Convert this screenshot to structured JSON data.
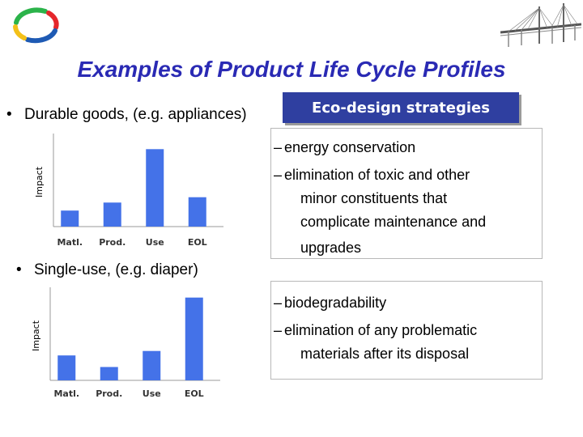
{
  "title": "Examples of Product Life Cycle Profiles",
  "bullets": {
    "durable": "Durable goods, (e.g. appliances)",
    "single_use": "Single-use, (e.g. diaper)",
    "marker": "•"
  },
  "strategy_box": {
    "label": "Eco-design strategies"
  },
  "durable_strategies": {
    "items": [
      [
        "energy conservation"
      ],
      [
        "elimination of toxic and other",
        "minor constituents that",
        "complicate maintenance and",
        "upgrades"
      ]
    ]
  },
  "single_use_strategies": {
    "items": [
      [
        "biodegradability"
      ],
      [
        "elimination of any problematic",
        "materials after its disposal"
      ]
    ]
  },
  "chart_data": [
    {
      "type": "bar",
      "categories": [
        "Matl.",
        "Prod.",
        "Use",
        "EOL"
      ],
      "values": [
        18,
        27,
        87,
        33
      ],
      "ylabel": "Impact",
      "xlabel": "",
      "title": "",
      "ylim": [
        0,
        100
      ],
      "color": "#4472e8"
    },
    {
      "type": "bar",
      "categories": [
        "Matl.",
        "Prod.",
        "Use",
        "EOL"
      ],
      "values": [
        28,
        15,
        33,
        93
      ],
      "ylabel": "Impact",
      "xlabel": "",
      "title": "",
      "ylim": [
        0,
        100
      ],
      "color": "#4472e8"
    }
  ]
}
